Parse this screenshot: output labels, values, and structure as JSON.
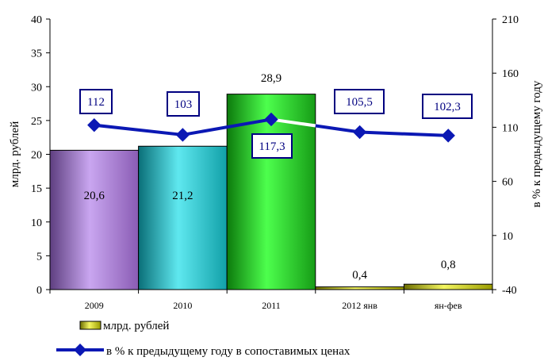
{
  "chart_data": {
    "type": "bar",
    "categories": [
      "2009",
      "2010",
      "2011",
      "2012 янв",
      "ян-фев"
    ],
    "series": [
      {
        "name": "млрд. рублей",
        "type": "bar",
        "axis": "left",
        "values": [
          20.6,
          21.2,
          28.9,
          0.4,
          0.8
        ],
        "labels": [
          "20,6",
          "21,2",
          "28,9",
          "0,4",
          "0,8"
        ],
        "colors": [
          "#a070c8",
          "#17b8c0",
          "#22b722",
          "#b4b800",
          "#b4b800"
        ]
      },
      {
        "name": "в % к предыдущему году в сопоставимых ценах",
        "type": "line",
        "axis": "right",
        "values": [
          112,
          103,
          117.3,
          105.5,
          102.3
        ],
        "labels": [
          "112",
          "103",
          "117,3",
          "105,5",
          "102,3"
        ],
        "color": "#0b18b4"
      }
    ],
    "ylabel": "млрд. рублей",
    "y2label": "в % к предыдущему году",
    "ylim": [
      0,
      40
    ],
    "yticks": [
      "0",
      "5",
      "10",
      "15",
      "20",
      "25",
      "30",
      "35",
      "40"
    ],
    "y2lim": [
      -40,
      210
    ],
    "y2ticks": [
      "-40",
      "10",
      "60",
      "110",
      "160",
      "210"
    ],
    "legend_position": "bottom-left"
  }
}
